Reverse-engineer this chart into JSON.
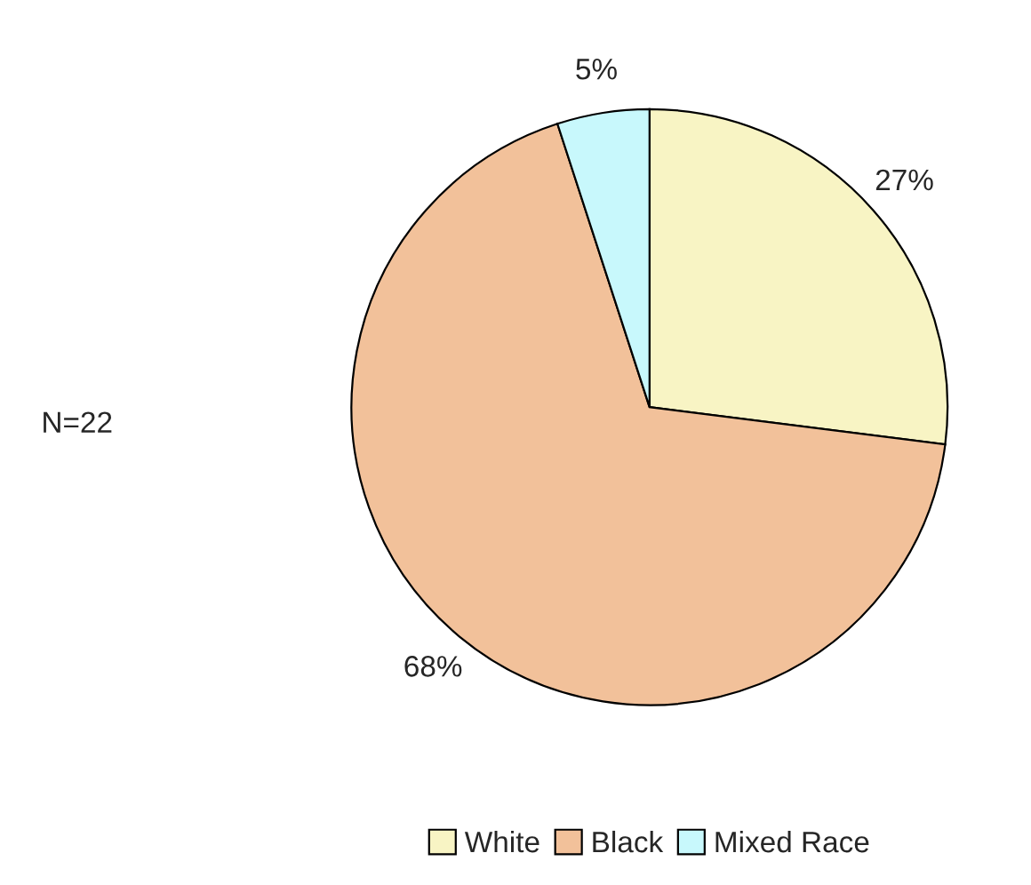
{
  "chart_data": {
    "type": "pie",
    "categories": [
      "White",
      "Black",
      "Mixed Race"
    ],
    "values": [
      27,
      68,
      5
    ],
    "value_labels": [
      "27%",
      "68%",
      "5%"
    ],
    "colors": [
      "#f8f4c4",
      "#f2c19a",
      "#c8f8fc"
    ],
    "legend": "bottom",
    "annotations": [
      "N=22"
    ]
  }
}
